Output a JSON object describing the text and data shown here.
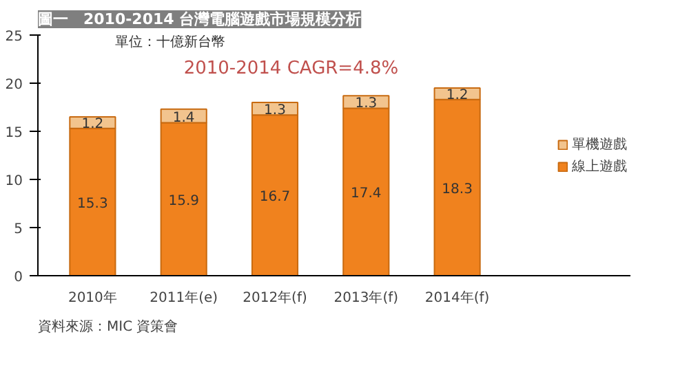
{
  "chart_data": {
    "type": "bar",
    "title": "圖一　2010-2014 台灣電腦遊戲市場規模分析",
    "categories": [
      "2010年",
      "2011年(e)",
      "2012年(f)",
      "2013年(f)",
      "2014年(f)"
    ],
    "stacked": true,
    "series": [
      {
        "name": "線上遊戲",
        "color": "#f0821e",
        "values": [
          15.3,
          15.9,
          16.7,
          17.4,
          18.3
        ]
      },
      {
        "name": "單機遊戲",
        "color": "#f2c48e",
        "values": [
          1.2,
          1.4,
          1.3,
          1.3,
          1.2
        ]
      }
    ],
    "ylim": [
      0,
      25
    ],
    "yticks": [
      0,
      5,
      10,
      15,
      20,
      25
    ],
    "data_labels": true,
    "legend": "right",
    "grid": false,
    "annotations": [
      "單位：十億新台幣",
      "2010-2014 CAGR=4.8%",
      "資料來源：MIC 資策會"
    ]
  }
}
